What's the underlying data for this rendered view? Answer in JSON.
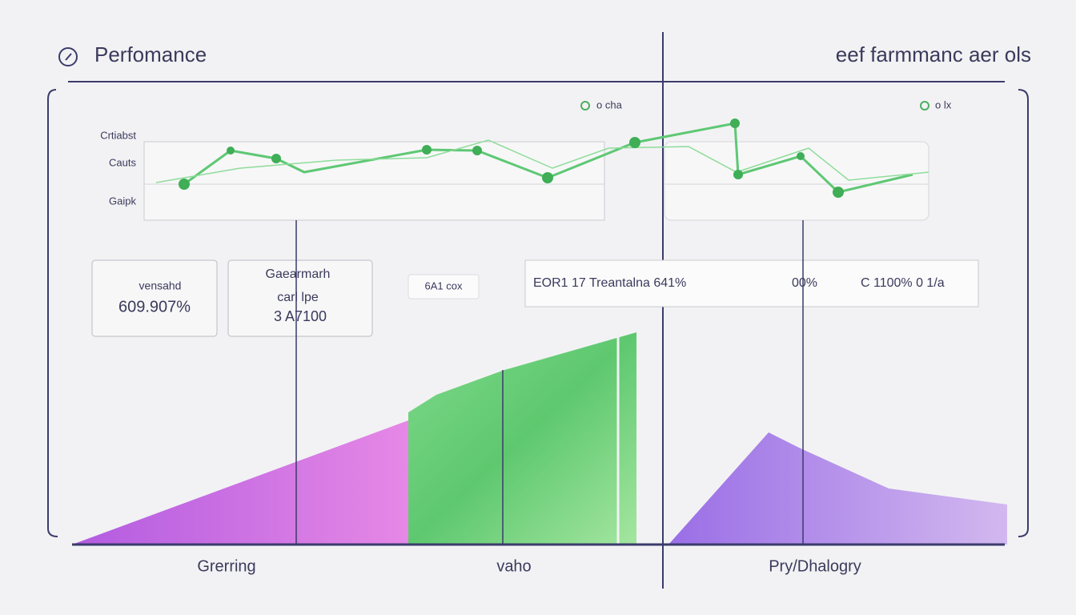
{
  "header": {
    "title": "Perfomance",
    "right_title": "eef farmmanc aer ols"
  },
  "legend": {
    "left": "o cha",
    "right": "o lx"
  },
  "line_panel": {
    "labels": [
      "Crtiabst",
      "Cauts",
      "Gaipk"
    ]
  },
  "cards": [
    {
      "label": "vensahd",
      "value": "609.907%"
    },
    {
      "title": "Gaearmarh",
      "label": "carl lpe",
      "value": "3 A7100"
    }
  ],
  "chip": "6A1 cox",
  "status_bar": {
    "left": "EOR1 17 Treantalna 641%",
    "middle": "00%",
    "right": "C 1100% 0 1/a"
  },
  "bottom_labels": [
    "Grerring",
    "vaho",
    "Pry/Dhalogry"
  ]
}
